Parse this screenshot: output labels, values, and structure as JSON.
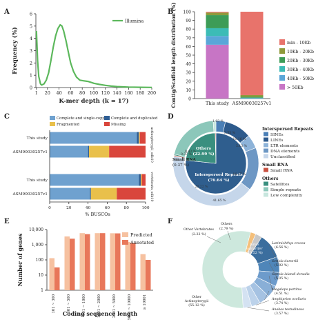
{
  "chart_data": [
    {
      "panel": "A",
      "type": "line",
      "xlabel": "K-mer depth (k = 17)",
      "ylabel": "Frequency (%)",
      "xlim": [
        0,
        200
      ],
      "ylim": [
        0,
        6
      ],
      "xticks": [
        1,
        20,
        40,
        60,
        80,
        100,
        120,
        140,
        160,
        180,
        200
      ],
      "yticks": [
        0,
        1,
        2,
        3,
        4,
        5,
        6
      ],
      "legend_position": "top-right",
      "color": "#5cb85c",
      "series": [
        {
          "name": "Illumina",
          "x": [
            1,
            3,
            5,
            8,
            10,
            14,
            18,
            22,
            26,
            30,
            34,
            38,
            42,
            45,
            48,
            52,
            56,
            60,
            65,
            70,
            76,
            82,
            90,
            100,
            110,
            120,
            130,
            140,
            160,
            180,
            200
          ],
          "y": [
            4.6,
            2.2,
            0.9,
            0.3,
            0.2,
            0.3,
            0.6,
            1.2,
            2.2,
            3.3,
            4.2,
            4.8,
            5.1,
            5.0,
            4.6,
            3.8,
            2.9,
            2.0,
            1.3,
            0.85,
            0.6,
            0.55,
            0.5,
            0.35,
            0.25,
            0.18,
            0.12,
            0.08,
            0.04,
            0.02,
            0.01
          ]
        }
      ]
    },
    {
      "panel": "B",
      "type": "bar",
      "stacked": true,
      "ylabel": "Contig/Scaffold length distribution (%)",
      "categories": [
        "This study",
        "ASM90030257v1"
      ],
      "yticks": [
        0,
        10,
        20,
        30,
        40,
        50,
        60,
        70,
        80,
        90,
        100
      ],
      "ylim": [
        0,
        100
      ],
      "legend_position": "right",
      "series": [
        {
          "name": "> 50Kb",
          "color": "#c775c5",
          "values": [
            62,
            0
          ]
        },
        {
          "name": "40Kb - 50Kb",
          "color": "#5aa6d8",
          "values": [
            10,
            0.5
          ]
        },
        {
          "name": "30Kb - 40Kb",
          "color": "#3cbcb6",
          "values": [
            9,
            0.5
          ]
        },
        {
          "name": "20Kb - 30Kb",
          "color": "#3d9c57",
          "values": [
            15,
            1
          ]
        },
        {
          "name": "10Kb - 20Kb",
          "color": "#8f9a3b",
          "values": [
            3,
            2
          ]
        },
        {
          "name": "min - 10Kb",
          "color": "#e8736b",
          "values": [
            1,
            96
          ]
        }
      ]
    },
    {
      "panel": "C",
      "type": "bar",
      "orientation": "horizontal",
      "stacked": true,
      "xlabel": "% BUSCOs",
      "xlim": [
        0,
        100
      ],
      "xticks": [
        0,
        20,
        40,
        60,
        80,
        100
      ],
      "legend": [
        "Complete and single-copy",
        "Complete and duplicated",
        "Fragmented",
        "Missing"
      ],
      "colors": [
        "#6fa1cf",
        "#2f5e94",
        "#e9c04b",
        "#d9463c"
      ],
      "groups": [
        {
          "label": "actinopterygii_odb10",
          "rows": [
            {
              "name": "This study",
              "values": [
                91,
                2,
                1,
                6
              ]
            },
            {
              "name": "ASM90030257v1",
              "values": [
                40,
                1,
                21,
                38
              ]
            }
          ]
        },
        {
          "label": "vertebrata_odb10",
          "rows": [
            {
              "name": "This study",
              "values": [
                93,
                2,
                1,
                4
              ]
            },
            {
              "name": "ASM90030257v1",
              "values": [
                42,
                1,
                27,
                30
              ]
            }
          ]
        }
      ]
    },
    {
      "panel": "D",
      "type": "pie",
      "inner_ring": [
        {
          "name": "Interspersed Repeats (76.64 %)",
          "value": 76.64,
          "color": "#2f5e8e"
        },
        {
          "name": "Others (22.99 %)",
          "value": 22.99,
          "color": "#3a8f7f"
        },
        {
          "name": "Small RNA",
          "value": 0.37,
          "color": "#c85040"
        }
      ],
      "outer_ring": [
        {
          "name": "SINEs",
          "label": "3.53 %",
          "value": 3.53,
          "color": "#4a7fb6"
        },
        {
          "name": "LINEs",
          "label": "10.16 %",
          "value": 10.16,
          "color": "#2d5a8c"
        },
        {
          "name": "LTR elements",
          "label": "5.13 %",
          "value": 5.13,
          "color": "#8db3d9"
        },
        {
          "name": "DNA elements",
          "label": "16.17 %",
          "value": 16.17,
          "color": "#6d97c4"
        },
        {
          "name": "Unclassified",
          "label": "41.65 %",
          "value": 41.65,
          "color": "#c5d6ea"
        },
        {
          "name": "Small RNA",
          "label": "0.37 %",
          "value": 0.37,
          "color": "#c85040"
        },
        {
          "name": "Satellites",
          "label": "0.43 %",
          "value": 0.43,
          "color": "#3a8f7f"
        },
        {
          "name": "Simple repeats",
          "label": "20.22 %",
          "value": 20.22,
          "color": "#8cc7ba"
        },
        {
          "name": "Low complexity",
          "label": "1.03 %",
          "value": 1.03,
          "color": "#c7e6de"
        }
      ],
      "legend_headers": [
        "Interspersed Repeats",
        "Small RNA",
        "Others"
      ]
    },
    {
      "panel": "E",
      "type": "bar",
      "log_y": true,
      "xlabel": "Coding sequence length",
      "ylabel": "Number of genes",
      "ylim": [
        1,
        10000
      ],
      "yticks": [
        "1",
        "10",
        "100",
        "1,000",
        "10,000"
      ],
      "legend_position": "top-right",
      "categories": [
        "101 ~ 300",
        "301 ~ 500",
        "501 ~ 1000",
        "1001 ~ 2000",
        "2001 ~ 5000",
        "5001 ~ 10000",
        "≥ 10001"
      ],
      "series": [
        {
          "name": "Predicted",
          "color": "#f6c1a0",
          "values": [
            130,
            3500,
            5800,
            5800,
            5700,
            1500,
            240
          ]
        },
        {
          "name": "Annotated",
          "color": "#e8775a",
          "values": [
            32,
            2500,
            5000,
            5800,
            5600,
            1300,
            100
          ]
        }
      ]
    },
    {
      "panel": "F",
      "type": "pie",
      "donut": true,
      "slices": [
        {
          "name": "Other Actinopterygii",
          "label": "(55.12 %)",
          "value": 55.12,
          "color": "#cde8dd"
        },
        {
          "name": "Other Vertebrates",
          "label": "(2.22 %)",
          "value": 2.22,
          "color": "#f4bf7a"
        },
        {
          "name": "Others",
          "label": "(2.79 %)",
          "value": 2.79,
          "color": "#c8c8c8"
        },
        {
          "name": "Lates calcarifer",
          "label": "(10.52 %)",
          "value": 10.52,
          "color": "#3b6e9e"
        },
        {
          "name": "Larimichthys crocea",
          "label": "(6.56 %)",
          "value": 6.56,
          "color": "#4f86b9"
        },
        {
          "name": "Seriola dumerili",
          "label": "(5.92 %)",
          "value": 5.92,
          "color": "#6d9bcb"
        },
        {
          "name": "Seriola lalandi dorsalis",
          "label": "(5.05 %)",
          "value": 5.05,
          "color": "#89afd7"
        },
        {
          "name": "Megalops partitus",
          "label": "(4.51 %)",
          "value": 4.51,
          "color": "#a5c2e2"
        },
        {
          "name": "Amphiprion ocellaris",
          "label": "(3.74 %)",
          "value": 3.74,
          "color": "#bcd2ea"
        },
        {
          "name": "Anabas testudineus",
          "label": "(3.57 %)",
          "value": 3.57,
          "color": "#d4e2f2"
        }
      ]
    }
  ]
}
